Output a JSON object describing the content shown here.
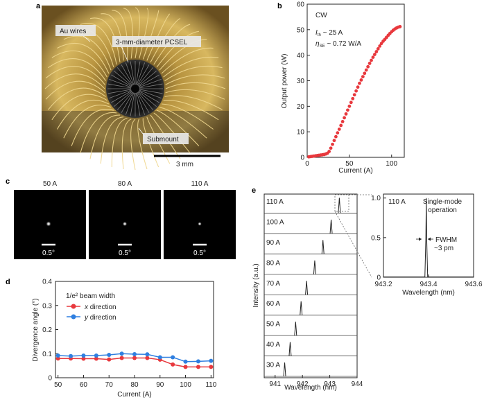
{
  "panel_labels": {
    "a": "a",
    "b": "b",
    "c": "c",
    "d": "d",
    "e": "e"
  },
  "panel_a": {
    "label_wires": "Au wires",
    "label_pcsel": "3-mm-diameter PCSEL",
    "label_submount": "Submount",
    "scalebar": "3 mm"
  },
  "panel_c": {
    "titles": [
      "50 A",
      "80 A",
      "110 A"
    ],
    "scale_labels": [
      "0.5°",
      "0.5°",
      "0.5°"
    ]
  },
  "annotations": {
    "b_mode": "CW",
    "b_ith_sym": "I",
    "b_ith_sub": "th",
    "b_ith_val": " ~ 25 A",
    "b_eta_sym": "η",
    "b_eta_sub": "SE",
    "b_eta_val": " ~ 0.72 W/A",
    "d_title": "1/e² beam width",
    "d_leg_x_ital": "x",
    "d_leg_x_rest": " direction",
    "d_leg_y_ital": "y",
    "d_leg_y_rest": " direction",
    "e_inset_current": "110 A",
    "e_single_mode_1": "Single-mode",
    "e_single_mode_2": "operation",
    "e_fwhm_1": "FWHM",
    "e_fwhm_2": "~3 pm"
  },
  "colors": {
    "red": "#e8383d",
    "blue": "#2f7fe0",
    "dark": "#222222"
  },
  "chart_data": [
    {
      "id": "b",
      "type": "scatter",
      "title": "",
      "xlabel": "Current (A)",
      "ylabel": "Output power (W)",
      "xlim": [
        0,
        115
      ],
      "ylim": [
        0,
        60
      ],
      "xticks": [
        "0",
        "50",
        "100"
      ],
      "xtick_values": [
        0,
        50,
        100
      ],
      "yticks": [
        "0",
        "10",
        "20",
        "30",
        "40",
        "50",
        "60"
      ],
      "ytick_values": [
        0,
        10,
        20,
        30,
        40,
        50,
        60
      ],
      "x": [
        2,
        4,
        6,
        8,
        10,
        12,
        14,
        16,
        18,
        20,
        22,
        24,
        26,
        28,
        30,
        32,
        34,
        36,
        38,
        40,
        42,
        44,
        46,
        48,
        50,
        52,
        54,
        56,
        58,
        60,
        62,
        64,
        66,
        68,
        70,
        72,
        74,
        76,
        78,
        80,
        82,
        84,
        86,
        88,
        90,
        92,
        94,
        96,
        98,
        100,
        102,
        104,
        106,
        108,
        110
      ],
      "y": [
        0.2,
        0.3,
        0.4,
        0.5,
        0.6,
        0.7,
        0.8,
        0.9,
        1.0,
        1.1,
        1.3,
        1.6,
        2.3,
        3.6,
        5.1,
        6.6,
        8.1,
        9.6,
        11.0,
        12.5,
        14.0,
        15.5,
        17.0,
        18.5,
        20.0,
        21.5,
        23.0,
        24.5,
        26.0,
        27.5,
        29.0,
        30.3,
        31.6,
        32.9,
        34.2,
        35.5,
        36.8,
        38.0,
        39.2,
        40.3,
        41.4,
        42.5,
        43.6,
        44.6,
        45.5,
        46.2,
        47.0,
        47.8,
        48.5,
        49.2,
        49.8,
        50.3,
        50.7,
        51.0,
        51.2
      ]
    },
    {
      "id": "d",
      "type": "line",
      "title": "",
      "xlabel": "Current (A)",
      "ylabel": "Divergence angle (°)",
      "xlim": [
        49,
        111
      ],
      "ylim": [
        0,
        0.4
      ],
      "xticks": [
        "50",
        "60",
        "70",
        "80",
        "90",
        "100",
        "110"
      ],
      "xtick_values": [
        50,
        60,
        70,
        80,
        90,
        100,
        110
      ],
      "yticks": [
        "0",
        "0.1",
        "0.2",
        "0.3",
        "0.4"
      ],
      "ytick_values": [
        0,
        0.1,
        0.2,
        0.3,
        0.4
      ],
      "x": [
        50,
        55,
        60,
        65,
        70,
        75,
        80,
        85,
        90,
        95,
        100,
        105,
        110
      ],
      "series": [
        {
          "name": "x direction",
          "color": "#e8383d",
          "values": [
            0.08,
            0.08,
            0.079,
            0.079,
            0.076,
            0.082,
            0.082,
            0.082,
            0.075,
            0.055,
            0.045,
            0.045,
            0.045
          ]
        },
        {
          "name": "y direction",
          "color": "#2f7fe0",
          "values": [
            0.092,
            0.09,
            0.092,
            0.092,
            0.095,
            0.1,
            0.098,
            0.097,
            0.085,
            0.085,
            0.067,
            0.068,
            0.07
          ]
        }
      ]
    },
    {
      "id": "e",
      "type": "line",
      "title": "",
      "xlabel": "Wavelength (nm)",
      "ylabel": "Intensity (a.u.)",
      "xlim": [
        940.6,
        944
      ],
      "xticks": [
        "941",
        "942",
        "943",
        "944"
      ],
      "xtick_values": [
        941,
        942,
        943,
        944
      ],
      "traces": [
        {
          "label": "110 A",
          "peak": 943.35
        },
        {
          "label": "100 A",
          "peak": 943.05
        },
        {
          "label": "90 A",
          "peak": 942.75
        },
        {
          "label": "80 A",
          "peak": 942.45
        },
        {
          "label": "70 A",
          "peak": 942.15
        },
        {
          "label": "60 A",
          "peak": 941.95
        },
        {
          "label": "50 A",
          "peak": 941.75
        },
        {
          "label": "40 A",
          "peak": 941.55
        },
        {
          "label": "30 A",
          "peak": 941.35
        }
      ]
    },
    {
      "id": "e-inset",
      "type": "line",
      "title": "",
      "xlabel": "Wavelength (nm)",
      "ylabel": "",
      "xlim": [
        943.2,
        943.6
      ],
      "ylim": [
        0,
        1.05
      ],
      "xticks": [
        "943.2",
        "943.4",
        "943.6"
      ],
      "xtick_values": [
        943.2,
        943.4,
        943.6
      ],
      "yticks": [
        "0",
        "0.5",
        "1.0"
      ],
      "ytick_values": [
        0,
        0.5,
        1.0
      ],
      "peak": 943.39,
      "fwhm_nm": 0.003
    }
  ]
}
